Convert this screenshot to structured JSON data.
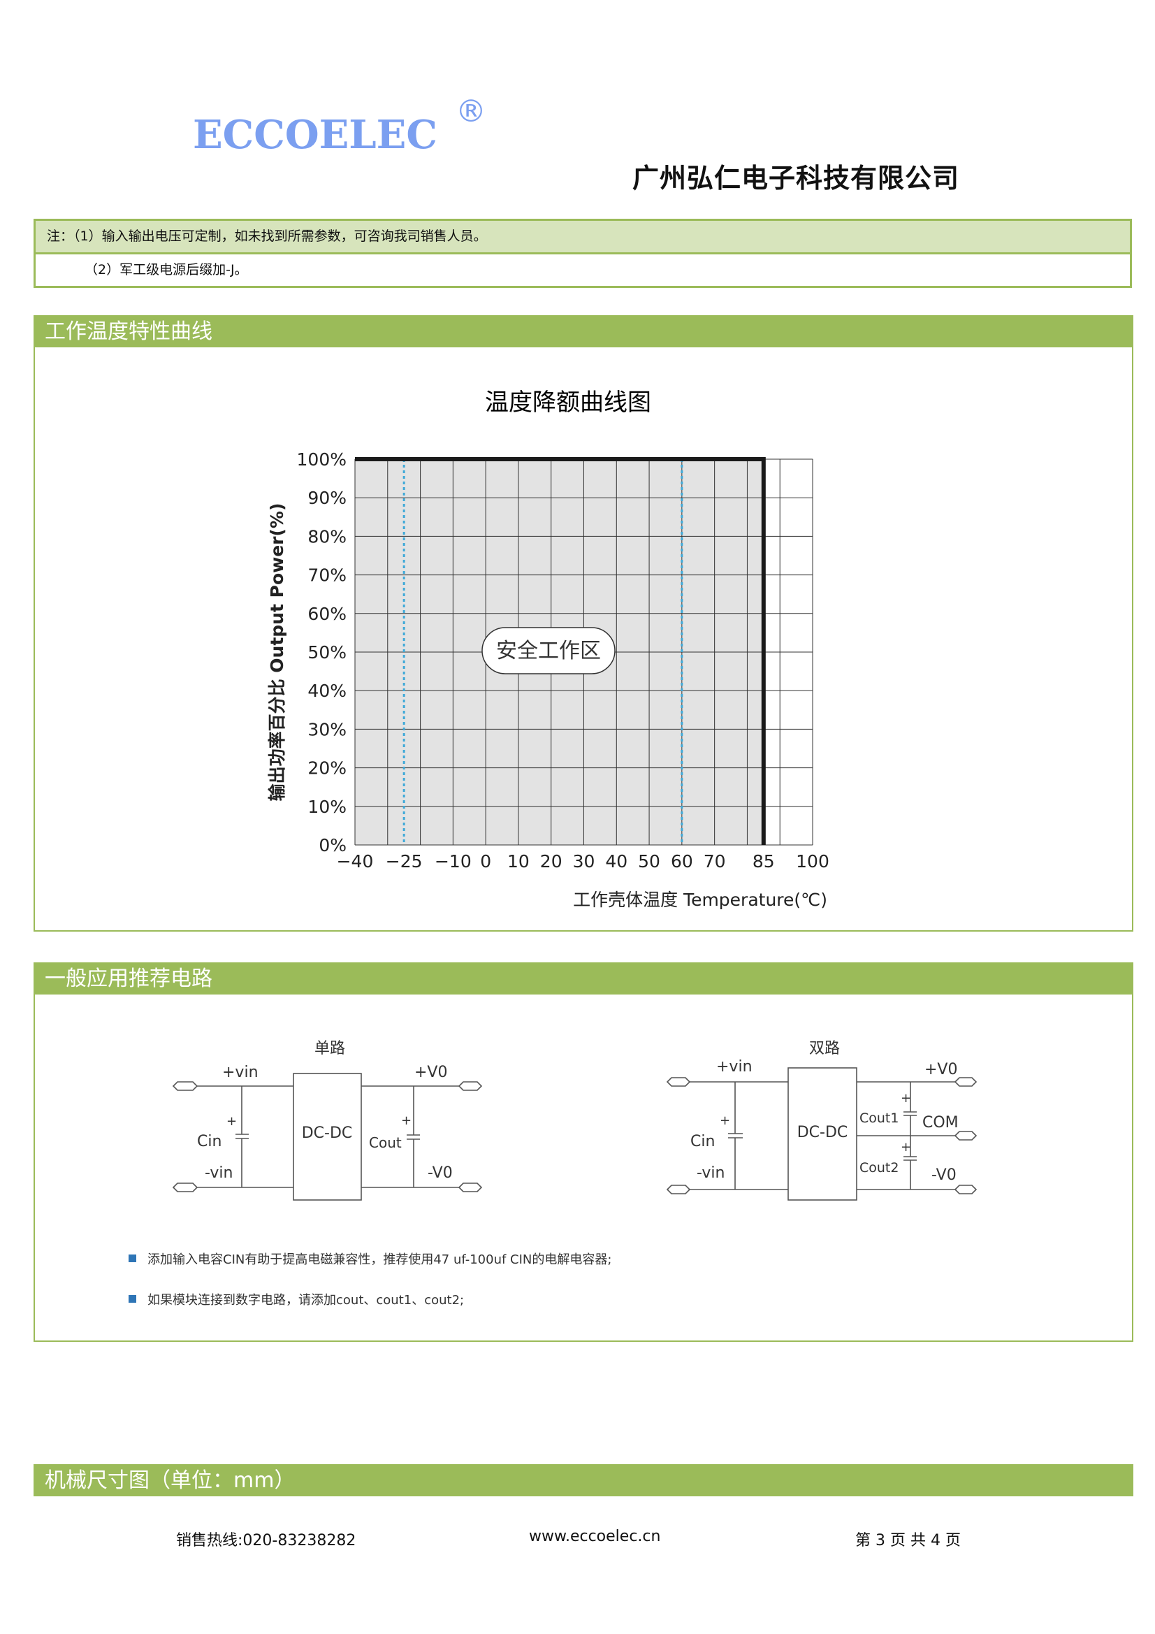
{
  "header": {
    "logo_text": "ECCOELEC",
    "logo_mark": "®",
    "company_name": "广州弘仁电子科技有限公司",
    "brand_color": "#7b9ff0"
  },
  "notes": {
    "line1": "注：（1）输入输出电压可定制，如未找到所需参数，可咨询我司销售人员。",
    "line2": "（2）军工级电源后缀加-J。"
  },
  "sections": {
    "temp_curve": "工作温度特性曲线",
    "circuit": "一般应用推荐电路",
    "mechanical": "机械尺寸图（单位：mm）"
  },
  "chart_data": {
    "type": "area",
    "title": "温度降额曲线图",
    "xlabel": "工作壳体温度 Temperature(℃)",
    "ylabel": "输出功率百分比 Output Power(%)",
    "x_tick_labels": [
      "-40",
      "-25",
      "-10",
      "0",
      "10",
      "20",
      "30",
      "40",
      "50",
      "60",
      "70",
      "85",
      "100"
    ],
    "y_tick_labels": [
      "0%",
      "10%",
      "20%",
      "30%",
      "40%",
      "50%",
      "60%",
      "70%",
      "80%",
      "90%",
      "100%"
    ],
    "xlim": [
      -40,
      100
    ],
    "ylim": [
      0,
      100
    ],
    "grid": true,
    "series": [
      {
        "x": [
          -40,
          85,
          85
        ],
        "y": [
          100,
          100,
          0
        ]
      }
    ],
    "reference_lines": [
      -25,
      60
    ],
    "region_label": "安全工作区",
    "colors": {
      "fill": "#e3e3e3",
      "curve": "#1a1a1a",
      "reference": "#3fa9d8",
      "grid": "#333333"
    }
  },
  "circuits": {
    "single": {
      "title": "单路",
      "plus_vin": "+vin",
      "minus_vin": "-vin",
      "cin": "Cin",
      "box": "DC-DC",
      "cout": "Cout",
      "plus_vo": "+V0",
      "minus_vo": "-V0",
      "plus": "+"
    },
    "dual": {
      "title": "双路",
      "plus_vin": "+vin",
      "minus_vin": "-vin",
      "cin": "Cin",
      "box": "DC-DC",
      "cout1": "Cout1",
      "cout2": "Cout2",
      "com": "COM",
      "plus_vo": "+V0",
      "minus_vo": "-V0",
      "plus": "+"
    }
  },
  "bullets": [
    "添加输入电容CIN有助于提高电磁兼容性，推荐使用47 uf-100uf CIN的电解电容器;",
    "如果模块连接到数字电路，请添加cout、cout1、cout2;"
  ],
  "bullet_color": "#2e75b6",
  "section_color": "#9bbb59",
  "footer": {
    "hotline": "销售热线:020-83238282",
    "website": "www.eccoelec.cn",
    "page": "第 3 页 共 4 页"
  }
}
